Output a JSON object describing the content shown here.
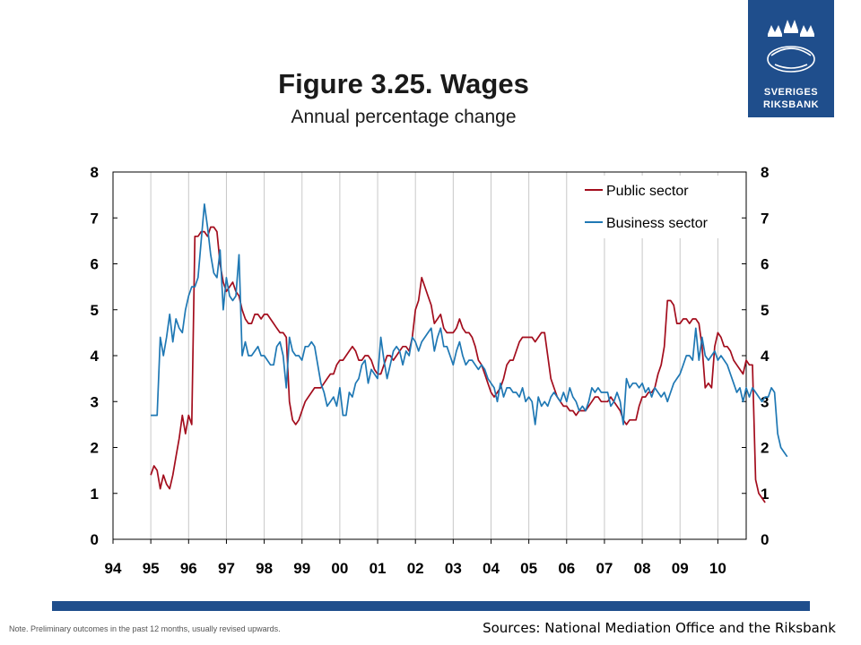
{
  "header": {
    "title": "Figure 3.25. Wages",
    "subtitle": "Annual percentage change"
  },
  "logo": {
    "line1": "SVERIGES",
    "line2": "RIKSBANK",
    "icon": "riksbank-crown-emblem-icon"
  },
  "footer": {
    "note": "Note. Preliminary outcomes in the past 12 months, usually revised upwards.",
    "sources": "Sources: National Mediation Office and the Riksbank"
  },
  "colors": {
    "brand": "#1f4e8c",
    "public": "#a30d1d",
    "business": "#1f78b4",
    "grid": "#c8c8c8"
  },
  "chart_data": {
    "type": "line",
    "title": "Figure 3.25. Wages",
    "subtitle": "Annual percentage change",
    "x_ticks": [
      "94",
      "95",
      "96",
      "97",
      "98",
      "99",
      "00",
      "01",
      "02",
      "03",
      "04",
      "05",
      "06",
      "07",
      "08",
      "09",
      "10"
    ],
    "ylim": [
      0,
      8
    ],
    "y_ticks_left": [
      "0",
      "1",
      "2",
      "3",
      "4",
      "5",
      "6",
      "7",
      "8"
    ],
    "y_ticks_right": [
      "0",
      "1",
      "2",
      "3",
      "4",
      "5",
      "6",
      "7",
      "8"
    ],
    "grid": "vertical",
    "legend": "top-right",
    "series": [
      {
        "name": "Public sector",
        "color": "#a30d1d",
        "x_start": 1995.0,
        "step_months": 1,
        "values": [
          1.4,
          1.6,
          1.5,
          1.1,
          1.4,
          1.2,
          1.1,
          1.4,
          1.8,
          2.2,
          2.7,
          2.3,
          2.7,
          2.5,
          6.6,
          6.6,
          6.7,
          6.7,
          6.6,
          6.8,
          6.8,
          6.7,
          6.0,
          5.6,
          5.4,
          5.5,
          5.6,
          5.4,
          5.3,
          5.0,
          4.8,
          4.7,
          4.7,
          4.9,
          4.9,
          4.8,
          4.9,
          4.9,
          4.8,
          4.7,
          4.6,
          4.5,
          4.5,
          4.4,
          3.0,
          2.6,
          2.5,
          2.6,
          2.8,
          3.0,
          3.1,
          3.2,
          3.3,
          3.3,
          3.3,
          3.4,
          3.5,
          3.6,
          3.6,
          3.8,
          3.9,
          3.9,
          4.0,
          4.1,
          4.2,
          4.1,
          3.9,
          3.9,
          4.0,
          4.0,
          3.9,
          3.7,
          3.6,
          3.6,
          3.8,
          4.0,
          4.0,
          3.9,
          4.0,
          4.1,
          4.2,
          4.2,
          4.1,
          4.4,
          5.0,
          5.2,
          5.7,
          5.5,
          5.3,
          5.1,
          4.7,
          4.8,
          4.9,
          4.6,
          4.5,
          4.5,
          4.5,
          4.6,
          4.8,
          4.6,
          4.5,
          4.5,
          4.4,
          4.2,
          3.9,
          3.8,
          3.6,
          3.4,
          3.2,
          3.1,
          3.2,
          3.3,
          3.5,
          3.8,
          3.9,
          3.9,
          4.1,
          4.3,
          4.4,
          4.4,
          4.4,
          4.4,
          4.3,
          4.4,
          4.5,
          4.5,
          4.0,
          3.5,
          3.3,
          3.1,
          3.0,
          2.9,
          2.9,
          2.8,
          2.8,
          2.7,
          2.8,
          2.8,
          2.8,
          2.9,
          3.0,
          3.1,
          3.1,
          3.0,
          3.0,
          3.0,
          3.1,
          3.0,
          2.9,
          2.8,
          2.6,
          2.5,
          2.6,
          2.6,
          2.6,
          2.9,
          3.1,
          3.1,
          3.2,
          3.2,
          3.3,
          3.6,
          3.8,
          4.2,
          5.2,
          5.2,
          5.1,
          4.7,
          4.7,
          4.8,
          4.8,
          4.7,
          4.8,
          4.8,
          4.7,
          4.2,
          3.3,
          3.4,
          3.3,
          4.2,
          4.5,
          4.4,
          4.2,
          4.2,
          4.1,
          3.9,
          3.8,
          3.7,
          3.6,
          3.9,
          3.8,
          3.8,
          1.3,
          1.0,
          0.9,
          0.8
        ]
      },
      {
        "name": "Business sector",
        "color": "#1f78b4",
        "x_start": 1995.0,
        "step_months": 1,
        "values": [
          2.7,
          2.7,
          2.7,
          4.4,
          4.0,
          4.4,
          4.9,
          4.3,
          4.8,
          4.6,
          4.5,
          5.0,
          5.3,
          5.5,
          5.5,
          5.7,
          6.5,
          7.3,
          6.8,
          6.2,
          5.8,
          5.7,
          6.3,
          5.0,
          5.7,
          5.3,
          5.2,
          5.3,
          6.2,
          4.0,
          4.3,
          4.0,
          4.0,
          4.1,
          4.2,
          4.0,
          4.0,
          3.9,
          3.8,
          3.8,
          4.2,
          4.3,
          4.0,
          3.3,
          4.4,
          4.1,
          4.0,
          4.0,
          3.9,
          4.2,
          4.2,
          4.3,
          4.2,
          3.8,
          3.4,
          3.2,
          2.9,
          3.0,
          3.1,
          2.9,
          3.3,
          2.7,
          2.7,
          3.2,
          3.1,
          3.4,
          3.5,
          3.8,
          3.9,
          3.4,
          3.7,
          3.6,
          3.5,
          4.4,
          3.9,
          3.5,
          3.8,
          4.1,
          4.2,
          4.1,
          3.8,
          4.1,
          4.0,
          4.4,
          4.3,
          4.1,
          4.3,
          4.4,
          4.5,
          4.6,
          4.1,
          4.4,
          4.6,
          4.2,
          4.2,
          4.0,
          3.8,
          4.1,
          4.3,
          4.0,
          3.8,
          3.9,
          3.9,
          3.8,
          3.7,
          3.8,
          3.7,
          3.5,
          3.4,
          3.3,
          3.0,
          3.4,
          3.1,
          3.3,
          3.3,
          3.2,
          3.2,
          3.1,
          3.3,
          3.0,
          3.1,
          3.0,
          2.5,
          3.1,
          2.9,
          3.0,
          2.9,
          3.1,
          3.2,
          3.1,
          3.0,
          3.2,
          3.0,
          3.3,
          3.1,
          3.0,
          2.8,
          2.9,
          2.8,
          3.0,
          3.3,
          3.2,
          3.3,
          3.2,
          3.2,
          3.2,
          2.9,
          3.0,
          3.2,
          3.0,
          2.5,
          3.5,
          3.3,
          3.4,
          3.4,
          3.3,
          3.4,
          3.2,
          3.3,
          3.1,
          3.3,
          3.2,
          3.1,
          3.2,
          3.0,
          3.2,
          3.4,
          3.5,
          3.6,
          3.8,
          4.0,
          4.0,
          3.9,
          4.6,
          3.9,
          4.4,
          4.0,
          3.9,
          4.0,
          4.1,
          3.9,
          4.0,
          3.9,
          3.8,
          3.6,
          3.4,
          3.2,
          3.3,
          3.0,
          3.3,
          3.1,
          3.3,
          3.2,
          3.1,
          3.0,
          3.1,
          3.1,
          3.3,
          3.2,
          2.3,
          2.0,
          1.9,
          1.8
        ]
      }
    ]
  }
}
